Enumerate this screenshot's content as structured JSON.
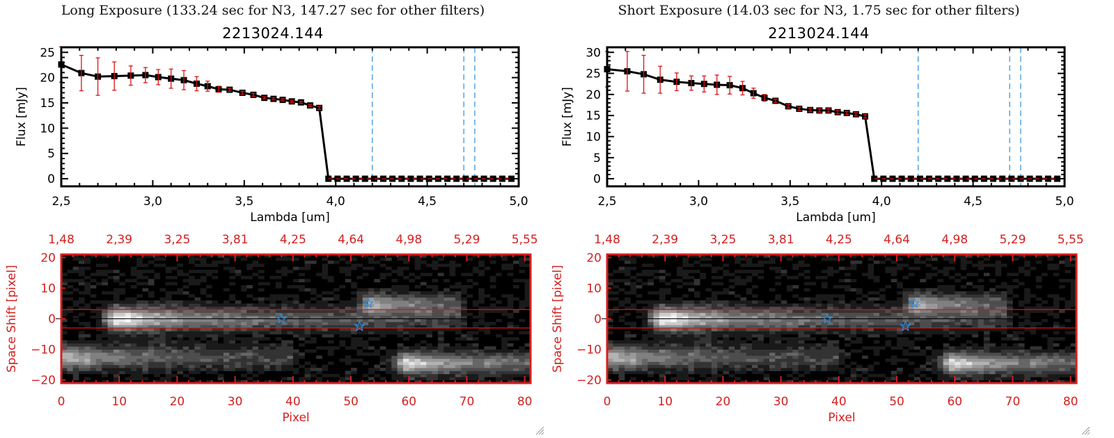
{
  "panels": [
    {
      "id": "long",
      "exposure_title": "Long Exposure (133.24 sec for N3, 147.27 sec for other filters)",
      "object_title": "2213024.144"
    },
    {
      "id": "short",
      "exposure_title": "Short Exposure (14.03 sec for N3, 1.75 sec for other filters)",
      "object_title": "2213024.144"
    }
  ],
  "colors": {
    "line": "#000000",
    "errorbar": "#e01010",
    "marker": "#000000",
    "filter_lines": "#2a8ee0",
    "zero_line": "#e01010",
    "image_frame": "#d42020",
    "aperture_lines": "#e01010",
    "star_markers": "#2a8ee0"
  },
  "chart_data": [
    {
      "type": "line",
      "panel": "long",
      "title": "2213024.144",
      "xlabel": "Lambda [um]",
      "ylabel": "Flux [mJy]",
      "xlim": [
        2.5,
        5.0
      ],
      "ylim": [
        -1.5,
        26
      ],
      "xticks": [
        "2.5",
        "3.0",
        "3.5",
        "4.0",
        "4.5",
        "5.0"
      ],
      "xtick_values": [
        2.5,
        3.0,
        3.5,
        4.0,
        4.5,
        5.0
      ],
      "yticks": [
        "0",
        "5",
        "10",
        "15",
        "20",
        "25"
      ],
      "ytick_values": [
        0,
        5,
        10,
        15,
        20,
        25
      ],
      "x": [
        2.5,
        2.61,
        2.7,
        2.79,
        2.88,
        2.96,
        3.03,
        3.1,
        3.17,
        3.24,
        3.3,
        3.36,
        3.42,
        3.49,
        3.55,
        3.61,
        3.66,
        3.71,
        3.76,
        3.81,
        3.86,
        3.91,
        3.96,
        4.01,
        4.06,
        4.11,
        4.16,
        4.21,
        4.26,
        4.31,
        4.36,
        4.41,
        4.46,
        4.51,
        4.56,
        4.61,
        4.66,
        4.71,
        4.76,
        4.81,
        4.86,
        4.91,
        4.96
      ],
      "y": [
        22.6,
        20.9,
        20.2,
        20.3,
        20.4,
        20.5,
        20.1,
        19.8,
        19.5,
        18.8,
        18.3,
        17.7,
        17.6,
        17.0,
        16.6,
        16.0,
        15.8,
        15.6,
        15.3,
        15.1,
        14.5,
        14.0,
        0,
        0,
        0,
        0,
        0,
        0,
        0,
        0,
        0,
        0,
        0,
        0,
        0,
        0,
        0,
        0,
        0,
        0,
        0,
        0,
        0
      ],
      "yerr": [
        3.5,
        3.5,
        3.7,
        2.8,
        1.9,
        1.5,
        1.5,
        1.9,
        1.9,
        1.4,
        1.0,
        0.6,
        0.3,
        0.3,
        0.3,
        0.2,
        0.2,
        0.2,
        0.2,
        0.2,
        0.2,
        0.3,
        0,
        0,
        0,
        0,
        0,
        0,
        0,
        0,
        0,
        0,
        0,
        0,
        0,
        0,
        0,
        0,
        0,
        0,
        0,
        0,
        0
      ],
      "vertical_dashed_lines": [
        4.2,
        4.7,
        4.76
      ],
      "horizontal_dashed_line": 0
    },
    {
      "type": "line",
      "panel": "short",
      "title": "2213024.144",
      "xlabel": "Lambda [um]",
      "ylabel": "Flux [mJy]",
      "xlim": [
        2.5,
        5.0
      ],
      "ylim": [
        -1.8,
        31.2
      ],
      "xticks": [
        "2.5",
        "3.0",
        "3.5",
        "4.0",
        "4.5",
        "5.0"
      ],
      "xtick_values": [
        2.5,
        3.0,
        3.5,
        4.0,
        4.5,
        5.0
      ],
      "yticks": [
        "0",
        "5",
        "10",
        "15",
        "20",
        "25",
        "30"
      ],
      "ytick_values": [
        0,
        5,
        10,
        15,
        20,
        25,
        30
      ],
      "x": [
        2.5,
        2.61,
        2.7,
        2.79,
        2.88,
        2.96,
        3.03,
        3.1,
        3.17,
        3.24,
        3.3,
        3.36,
        3.42,
        3.49,
        3.55,
        3.61,
        3.66,
        3.71,
        3.76,
        3.81,
        3.86,
        3.91,
        3.96,
        4.01,
        4.06,
        4.11,
        4.16,
        4.21,
        4.26,
        4.31,
        4.36,
        4.41,
        4.46,
        4.51,
        4.56,
        4.61,
        4.66,
        4.71,
        4.76,
        4.81,
        4.86,
        4.91,
        4.96
      ],
      "y": [
        26.0,
        25.5,
        24.8,
        23.5,
        23.0,
        22.7,
        22.5,
        22.3,
        22.2,
        21.5,
        20.3,
        19.2,
        18.5,
        17.2,
        16.6,
        16.3,
        16.2,
        16.2,
        15.8,
        15.6,
        15.3,
        14.8,
        0,
        0,
        0,
        0,
        0,
        0,
        0,
        0,
        0,
        0,
        0,
        0,
        0,
        0,
        0,
        0,
        0,
        0,
        0,
        0,
        0
      ],
      "yerr": [
        4.2,
        4.7,
        4.5,
        3.2,
        2.1,
        1.7,
        1.9,
        2.3,
        2.1,
        1.6,
        1.2,
        0.8,
        0.4,
        0.4,
        0.4,
        0.4,
        0.4,
        0.4,
        0.4,
        0.4,
        0.4,
        0.4,
        0,
        0,
        0,
        0,
        0,
        0,
        0,
        0,
        0,
        0,
        0,
        0,
        0,
        0,
        0,
        0,
        0,
        0,
        0,
        0,
        0
      ],
      "vertical_dashed_lines": [
        4.2,
        4.7,
        4.76
      ],
      "horizontal_dashed_line": 0
    },
    {
      "type": "heatmap",
      "panel": "long",
      "xlabel": "Pixel",
      "ylabel": "Space Shift [pixel]",
      "xlim": [
        0,
        81
      ],
      "ylim": [
        -21,
        21
      ],
      "xticks": [
        "0",
        "10",
        "20",
        "30",
        "40",
        "50",
        "60",
        "70",
        "80"
      ],
      "xtick_values": [
        0,
        10,
        20,
        30,
        40,
        50,
        60,
        70,
        80
      ],
      "top_xticks": [
        "1.48",
        "2.39",
        "3.25",
        "3.81",
        "4.25",
        "4.64",
        "4.98",
        "5.29",
        "5.55"
      ],
      "yticks": [
        "-20",
        "-10",
        "0",
        "10",
        "20"
      ],
      "ytick_values": [
        -20,
        -10,
        0,
        10,
        20
      ],
      "aperture_lines": [
        3,
        -3
      ],
      "center_line": 0,
      "stars": [
        [
          38,
          0
        ],
        [
          51.5,
          -2.5
        ],
        [
          53,
          5
        ]
      ],
      "sources": [
        {
          "x_start": 6,
          "x_end": 69,
          "y": 0,
          "peak_x": 10,
          "peak": 1.0,
          "width": 2.6
        },
        {
          "x_start": 0,
          "x_end": 40,
          "y": -12.5,
          "peak_x": 1,
          "peak": 0.7,
          "width": 2.6
        },
        {
          "x_start": 50,
          "x_end": 69,
          "y": 5,
          "peak_x": 54,
          "peak": 0.6,
          "width": 2.2
        },
        {
          "x_start": 55,
          "x_end": 81,
          "y": -14.5,
          "peak_x": 60,
          "peak": 0.85,
          "width": 2.4
        }
      ]
    },
    {
      "type": "heatmap",
      "panel": "short",
      "xlabel": "Pixel",
      "ylabel": "Space Shift [pixel]",
      "xlim": [
        0,
        81
      ],
      "ylim": [
        -21,
        21
      ],
      "xticks": [
        "0",
        "10",
        "20",
        "30",
        "40",
        "50",
        "60",
        "70",
        "80"
      ],
      "xtick_values": [
        0,
        10,
        20,
        30,
        40,
        50,
        60,
        70,
        80
      ],
      "top_xticks": [
        "1.48",
        "2.39",
        "3.25",
        "3.81",
        "4.25",
        "4.64",
        "4.98",
        "5.29",
        "5.55"
      ],
      "yticks": [
        "-20",
        "-10",
        "0",
        "10",
        "20"
      ],
      "ytick_values": [
        -20,
        -10,
        0,
        10,
        20
      ],
      "aperture_lines": [
        3,
        -3
      ],
      "center_line": 0,
      "stars": [
        [
          38,
          0
        ],
        [
          51.5,
          -2.5
        ],
        [
          53,
          5
        ]
      ],
      "sources": [
        {
          "x_start": 6,
          "x_end": 69,
          "y": 0,
          "peak_x": 10,
          "peak": 1.0,
          "width": 2.6
        },
        {
          "x_start": 0,
          "x_end": 40,
          "y": -12.5,
          "peak_x": 1,
          "peak": 0.7,
          "width": 2.6
        },
        {
          "x_start": 50,
          "x_end": 69,
          "y": 5,
          "peak_x": 54,
          "peak": 0.6,
          "width": 2.2
        },
        {
          "x_start": 55,
          "x_end": 81,
          "y": -14.5,
          "peak_x": 60,
          "peak": 0.85,
          "width": 2.4
        }
      ]
    }
  ]
}
